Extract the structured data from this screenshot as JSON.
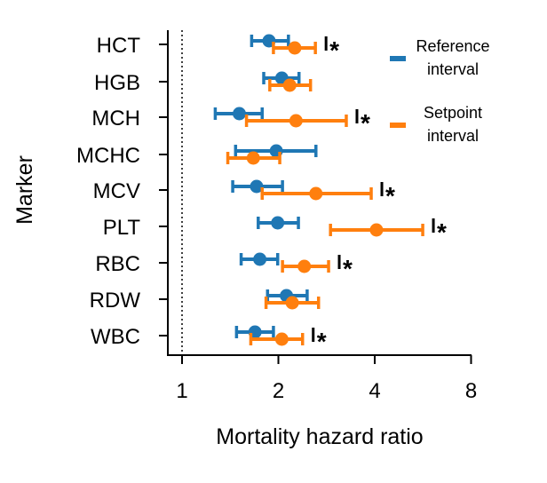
{
  "chart_data": {
    "type": "forest",
    "xlabel": "Mortality hazard ratio",
    "ylabel": "Marker",
    "xscale": "log2",
    "xlim": [
      0.93,
      8
    ],
    "xticks": [
      1,
      2,
      4,
      8
    ],
    "xtick_labels": [
      "1",
      "2",
      "4",
      "8"
    ],
    "reference_line": 1,
    "categories": [
      "HCT",
      "HGB",
      "MCH",
      "MCHC",
      "MCV",
      "PLT",
      "RBC",
      "RDW",
      "WBC"
    ],
    "series": [
      {
        "name": "Reference interval",
        "legend_line1": "Reference",
        "legend_line2": "interval",
        "color": "#1f77b4",
        "values": [
          1.87,
          2.05,
          1.51,
          1.97,
          1.71,
          1.99,
          1.75,
          2.12,
          1.69
        ],
        "lower": [
          1.65,
          1.8,
          1.27,
          1.47,
          1.44,
          1.73,
          1.53,
          1.85,
          1.48
        ],
        "upper": [
          2.15,
          2.32,
          1.78,
          2.62,
          2.06,
          2.31,
          1.99,
          2.46,
          1.93
        ]
      },
      {
        "name": "Setpoint interval",
        "legend_line1": "Setpoint",
        "legend_line2": "interval",
        "color": "#ff7f0e",
        "values": [
          2.25,
          2.17,
          2.27,
          1.67,
          2.62,
          4.05,
          2.41,
          2.21,
          2.05
        ],
        "lower": [
          1.93,
          1.88,
          1.59,
          1.39,
          1.78,
          2.91,
          2.06,
          1.83,
          1.64
        ],
        "upper": [
          2.61,
          2.52,
          3.26,
          2.02,
          3.9,
          5.65,
          2.87,
          2.67,
          2.38
        ]
      }
    ],
    "significance_mark": "*",
    "significant": [
      true,
      false,
      true,
      false,
      true,
      true,
      true,
      false,
      true
    ],
    "legend_position": "top-right"
  }
}
